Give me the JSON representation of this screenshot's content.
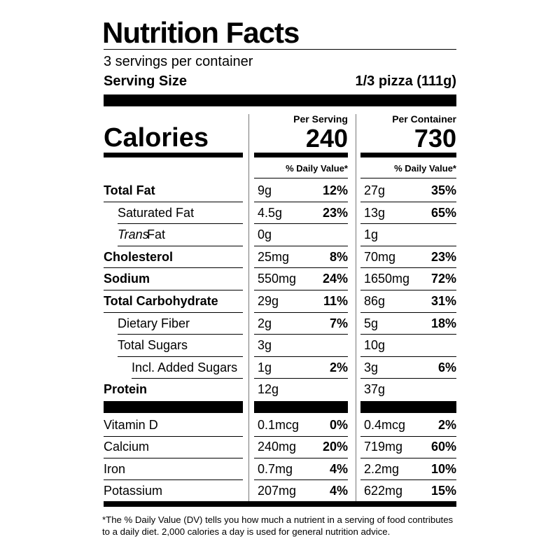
{
  "header": {
    "title": "Nutrition Facts",
    "servings": "3 servings per container",
    "serving_size_label": "Serving Size",
    "serving_size": "1/3 pizza (111g)"
  },
  "calories": {
    "label": "Calories",
    "per_serving_label": "Per Serving",
    "per_serving": "240",
    "per_container_label": "Per Container",
    "per_container": "730",
    "dv_label": "% Daily Value*",
    "dv_label_container": "% Daily Value*"
  },
  "nutrients": [
    {
      "label": "Total Fat",
      "bold": true,
      "indent": 0,
      "serving": {
        "amount": "9g",
        "dv": "12%"
      },
      "container": {
        "amount": "27g",
        "dv": "35%"
      }
    },
    {
      "label": "Saturated Fat",
      "indent": 1,
      "serving": {
        "amount": "4.5g",
        "dv": "23%"
      },
      "container": {
        "amount": "13g",
        "dv": "65%"
      }
    },
    {
      "label_italic": "Trans",
      "label": "Fat",
      "indent": 1,
      "serving": {
        "amount": "0g"
      },
      "container": {
        "amount": "1g"
      }
    },
    {
      "label": "Cholesterol",
      "bold": true,
      "indent": 0,
      "serving": {
        "amount": "25mg",
        "dv": "8%"
      },
      "container": {
        "amount": "70mg",
        "dv": "23%"
      }
    },
    {
      "label": "Sodium",
      "bold": true,
      "indent": 0,
      "serving": {
        "amount": "550mg",
        "dv": "24%"
      },
      "container": {
        "amount": "1650mg",
        "dv": "72%"
      }
    },
    {
      "label": "Total Carbohydrate",
      "bold": true,
      "indent": 0,
      "serving": {
        "amount": "29g",
        "dv": "11%"
      },
      "container": {
        "amount": "86g",
        "dv": "31%"
      }
    },
    {
      "label": "Dietary Fiber",
      "indent": 1,
      "serving": {
        "amount": "2g",
        "dv": "7%"
      },
      "container": {
        "amount": "5g",
        "dv": "18%"
      }
    },
    {
      "label": "Total Sugars",
      "indent": 1,
      "serving": {
        "amount": "3g"
      },
      "container": {
        "amount": "10g"
      }
    },
    {
      "label": "Incl. Added Sugars",
      "indent": 2,
      "serving": {
        "amount": "1g",
        "dv": "2%"
      },
      "container": {
        "amount": "3g",
        "dv": "6%"
      }
    },
    {
      "label": "Protein",
      "bold": true,
      "indent": 0,
      "serving": {
        "amount": "12g"
      },
      "container": {
        "amount": "37g"
      }
    }
  ],
  "vitamins": [
    {
      "label": "Vitamin D",
      "serving": {
        "amount": "0.1mcg",
        "dv": "0%"
      },
      "container": {
        "amount": "0.4mcg",
        "dv": "2%"
      }
    },
    {
      "label": "Calcium",
      "serving": {
        "amount": "240mg",
        "dv": "20%"
      },
      "container": {
        "amount": "719mg",
        "dv": "60%"
      }
    },
    {
      "label": "Iron",
      "serving": {
        "amount": "0.7mg",
        "dv": "4%"
      },
      "container": {
        "amount": "2.2mg",
        "dv": "10%"
      }
    },
    {
      "label": "Potassium",
      "serving": {
        "amount": "207mg",
        "dv": "4%"
      },
      "container": {
        "amount": "622mg",
        "dv": "15%"
      }
    }
  ],
  "footnote": [
    "*The % Daily Value (DV) tells you how much a nutrient in a serving of food contributes",
    "to a daily diet. 2,000 calories a day is used for general nutrition advice."
  ]
}
